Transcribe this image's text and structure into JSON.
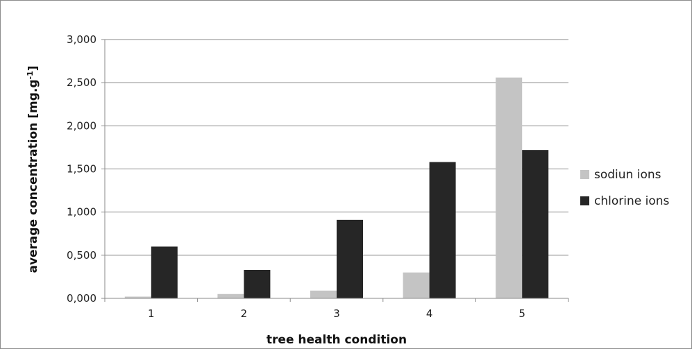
{
  "chart_data": {
    "type": "bar",
    "title": "",
    "xlabel": "tree health condition",
    "ylabel": "average concentration [mg.g",
    "ylabel_superscript": "-1",
    "ylabel_suffix": "]",
    "categories": [
      "1",
      "2",
      "3",
      "4",
      "5"
    ],
    "series": [
      {
        "name": "sodiun ions",
        "color": "#c4c4c4",
        "values": [
          0.02,
          0.05,
          0.09,
          0.3,
          2.56
        ]
      },
      {
        "name": "chlorine ions",
        "color": "#262626",
        "values": [
          0.6,
          0.33,
          0.91,
          1.58,
          1.72
        ]
      }
    ],
    "ylim": [
      0,
      3
    ],
    "yticks": [
      "0,000",
      "0,500",
      "1,000",
      "1,500",
      "2,000",
      "2,500",
      "3,000"
    ],
    "grid": true,
    "legend_position": "right"
  }
}
